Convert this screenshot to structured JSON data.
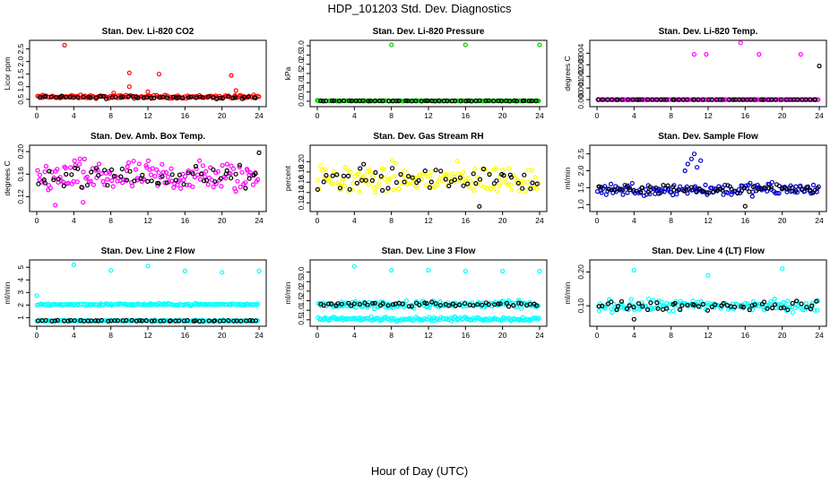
{
  "figure": {
    "title": "HDP_101203  Std. Dev. Diagnostics",
    "xlabel": "Hour of Day (UTC)",
    "x_ticks": [
      "0",
      "4",
      "8",
      "12",
      "16",
      "20",
      "24"
    ]
  },
  "chart_data": [
    {
      "type": "scatter",
      "title": "Stan. Dev. Li-820 CO2",
      "ylabel": "Licor ppm",
      "xlim": [
        0,
        24
      ],
      "ylim": [
        0.35,
        2.7
      ],
      "y_ticks": [
        "0.5",
        "1.0",
        "1.5",
        "2.0",
        "2.5"
      ],
      "y_tick_values": [
        0.5,
        1.0,
        1.5,
        2.0,
        2.5
      ],
      "series": [
        {
          "color": "#ff0000",
          "base": 0.6,
          "spread": 0.05,
          "outliers": [
            [
              3.0,
              2.65
            ],
            [
              10.0,
              1.55
            ],
            [
              10.0,
              1.0
            ],
            [
              13.2,
              1.5
            ],
            [
              21.0,
              1.45
            ],
            [
              21.5,
              0.85
            ],
            [
              8.3,
              0.75
            ],
            [
              12.0,
              0.8
            ]
          ]
        },
        {
          "color": "#000000",
          "base": 0.58,
          "spread": 0.04,
          "outliers": []
        }
      ]
    },
    {
      "type": "scatter",
      "title": "Stan. Dev. Li-820 Pressure",
      "ylabel": "kPa",
      "xlim": [
        0,
        24
      ],
      "ylim": [
        -0.1,
        3.1
      ],
      "y_ticks": [
        "0.0",
        "0.5",
        "1.0",
        "1.5",
        "2.0",
        "2.5",
        "3.0"
      ],
      "y_tick_values": [
        0,
        0.5,
        1.0,
        1.5,
        2.0,
        2.5,
        3.0
      ],
      "series": [
        {
          "color": "#00cc00",
          "base": 0.02,
          "spread": 0.01,
          "outliers": [
            [
              8.0,
              3.05
            ],
            [
              16.0,
              3.05
            ],
            [
              24.0,
              3.05
            ],
            [
              0.0,
              0.05
            ]
          ]
        },
        {
          "color": "#000000",
          "base": 0.02,
          "spread": 0.01,
          "outliers": []
        }
      ]
    },
    {
      "type": "scatter",
      "title": "Stan. Dev. Li-820 Temp.",
      "ylabel": "degrees C",
      "xlim": [
        0,
        24
      ],
      "ylim": [
        -0.0003,
        0.0048
      ],
      "y_ticks": [
        "0.000",
        "0.001",
        "0.002",
        "0.003",
        "0.004"
      ],
      "y_tick_values": [
        0,
        0.001,
        0.002,
        0.003,
        0.004
      ],
      "series": [
        {
          "color": "#ff00ff",
          "base": 0.0,
          "spread": 0.0,
          "outliers": [
            [
              10.5,
              0.0039
            ],
            [
              11.8,
              0.0039
            ],
            [
              15.5,
              0.0049
            ],
            [
              17.5,
              0.0039
            ],
            [
              22.0,
              0.0039
            ]
          ]
        },
        {
          "color": "#000000",
          "base": 0.0,
          "spread": 0.0,
          "outliers": [
            [
              24.0,
              0.0029
            ]
          ]
        }
      ]
    },
    {
      "type": "scatter",
      "title": "Stan. Dev. Amb. Box Temp.",
      "ylabel": "degrees C",
      "xlim": [
        0,
        24
      ],
      "ylim": [
        0.1,
        0.205
      ],
      "y_ticks": [
        "0.12",
        "0.16",
        "0.20"
      ],
      "y_tick_values": [
        0.12,
        0.16,
        0.2
      ],
      "series": [
        {
          "color": "#ff00ff",
          "base": 0.155,
          "spread": 0.022,
          "outliers": [
            [
              2.0,
              0.105
            ],
            [
              5.0,
              0.11
            ]
          ]
        },
        {
          "color": "#000000",
          "base": 0.155,
          "spread": 0.015,
          "outliers": [
            [
              24.0,
              0.198
            ]
          ]
        }
      ]
    },
    {
      "type": "scatter",
      "title": "Stan. Dev. Gas Stream RH",
      "ylabel": "percent",
      "xlim": [
        0,
        24
      ],
      "ylim": [
        0.11,
        0.225
      ],
      "y_ticks": [
        "0.12",
        "0.14",
        "0.16",
        "0.18",
        "0.20"
      ],
      "y_tick_values": [
        0.12,
        0.14,
        0.16,
        0.18,
        0.2
      ],
      "series": [
        {
          "color": "#ffff00",
          "base": 0.165,
          "spread": 0.022,
          "outliers": []
        },
        {
          "color": "#000000",
          "base": 0.165,
          "spread": 0.015,
          "outliers": [
            [
              17.5,
              0.113
            ],
            [
              5.0,
              0.195
            ]
          ]
        }
      ]
    },
    {
      "type": "scatter",
      "title": "Stan. Dev. Sample Flow",
      "ylabel": "ml/min",
      "xlim": [
        0,
        24
      ],
      "ylim": [
        0.9,
        2.65
      ],
      "y_ticks": [
        "1.0",
        "1.5",
        "2.0",
        "2.5"
      ],
      "y_tick_values": [
        1.0,
        1.5,
        2.0,
        2.5
      ],
      "series": [
        {
          "color": "#0000cc",
          "base": 1.45,
          "spread": 0.15,
          "outliers": [
            [
              9.8,
              2.2
            ],
            [
              10.2,
              2.35
            ],
            [
              10.5,
              2.5
            ],
            [
              10.8,
              2.1
            ],
            [
              11.2,
              2.3
            ],
            [
              9.5,
              2.0
            ]
          ]
        },
        {
          "color": "#000000",
          "base": 1.45,
          "spread": 0.1,
          "outliers": [
            [
              16.0,
              0.95
            ]
          ]
        }
      ]
    },
    {
      "type": "scatter",
      "title": "Stan. Dev. Line 2 Flow",
      "ylabel": "ml/min",
      "xlim": [
        0,
        24
      ],
      "ylim": [
        0.6,
        5.3
      ],
      "y_ticks": [
        "1",
        "2",
        "3",
        "4",
        "5"
      ],
      "y_tick_values": [
        1,
        2,
        3,
        4,
        5
      ],
      "series": [
        {
          "color": "#00ffff",
          "base": 2.05,
          "spread": 0.06,
          "outliers": [
            [
              4.0,
              5.2
            ],
            [
              8.0,
              4.75
            ],
            [
              12.0,
              5.1
            ],
            [
              16.0,
              4.7
            ],
            [
              20.0,
              4.6
            ],
            [
              24.0,
              4.7
            ],
            [
              0.0,
              2.75
            ]
          ]
        },
        {
          "color": "#00ffff",
          "base": 0.75,
          "spread": 0.04,
          "outliers": []
        },
        {
          "color": "#000000",
          "base": 0.75,
          "spread": 0.03,
          "outliers": []
        }
      ]
    },
    {
      "type": "scatter",
      "title": "Stan. Dev. Line 3 Flow",
      "ylabel": "ml/min",
      "xlim": [
        0,
        24
      ],
      "ylim": [
        0.35,
        3.45
      ],
      "y_ticks": [
        "0.5",
        "1.0",
        "1.5",
        "2.0",
        "2.5",
        "3.0",
        "3.5"
      ],
      "y_tick_values": [
        0.5,
        1.0,
        1.5,
        2.0,
        2.5,
        3.0,
        3.5
      ],
      "series": [
        {
          "color": "#00ffff",
          "base": 0.55,
          "spread": 0.08,
          "outliers": [
            [
              4.0,
              3.3
            ],
            [
              8.0,
              3.1
            ],
            [
              12.0,
              3.1
            ],
            [
              16.0,
              3.05
            ],
            [
              20.0,
              3.05
            ],
            [
              24.0,
              3.05
            ]
          ]
        },
        {
          "color": "#00ffff",
          "base": 1.3,
          "spread": 0.15,
          "outliers": []
        },
        {
          "color": "#000000",
          "base": 1.3,
          "spread": 0.08,
          "outliers": []
        }
      ]
    },
    {
      "type": "scatter",
      "title": "Stan. Dev. Line 4 (LT) Flow",
      "ylabel": "ml/min",
      "xlim": [
        0,
        24
      ],
      "ylim": [
        0.05,
        0.225
      ],
      "y_ticks": [
        "0.10",
        "0.20"
      ],
      "y_tick_values": [
        0.1,
        0.2
      ],
      "series": [
        {
          "color": "#00ffff",
          "base": 0.1,
          "spread": 0.013,
          "outliers": [
            [
              4.0,
              0.205
            ],
            [
              12.0,
              0.19
            ],
            [
              20.0,
              0.21
            ]
          ]
        },
        {
          "color": "#000000",
          "base": 0.1,
          "spread": 0.01,
          "outliers": [
            [
              4.0,
              0.06
            ]
          ]
        }
      ]
    }
  ]
}
